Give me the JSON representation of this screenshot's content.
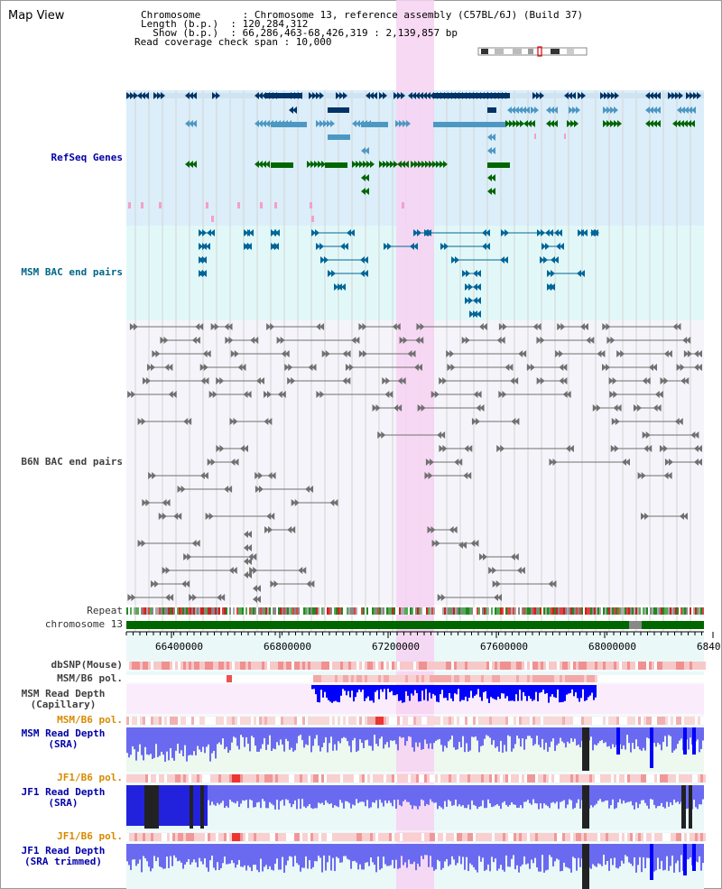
{
  "view": {
    "title": "Map View"
  },
  "info": {
    "chromosome_label": "Chromosome",
    "chromosome_value": "Chromosome 13, reference assembly (C57BL/6J) (Build 37)",
    "length_label": "Length (b.p.)",
    "length_value": "120,284,312",
    "show_label": "Show (b.p.)",
    "show_value": "66,286,463-68,426,319 : 2,139,857 bp",
    "coverage_label": "Read coverage check span",
    "coverage_value": "10,000",
    "line1": "Chromosome       : Chromosome 13, reference assembly (C57BL/6J) (Build 37)",
    "line2": "Length (b.p.)  : 120,284,312",
    "line3": "  Show (b.p.)  : 66,286,463-68,426,319 : 2,139,857 bp",
    "line4": "Read coverage check span : 10,000"
  },
  "tracks": {
    "refseq": "RefSeq Genes",
    "msm_bac": "MSM BAC end pairs",
    "b6n_bac": "B6N BAC end pairs",
    "repeat": "Repeat",
    "chromosome": "chromosome 13",
    "dbsnp": "dbSNP(Mouse)",
    "msm_b6_pol": "MSM/B6 pol.",
    "msm_depth_cap_1": "MSM Read Depth",
    "msm_depth_cap_2": "(Capillary)",
    "msm_b6_pol_2": "MSM/B6 pol.",
    "msm_depth_sra_1": "MSM Read Depth",
    "msm_depth_sra_2": "(SRA)",
    "jf1_b6_pol": "JF1/B6 pol.",
    "jf1_depth_sra_1": "JF1 Read Depth",
    "jf1_depth_sra_2": "(SRA)",
    "jf1_b6_pol_2": "JF1/B6 pol.",
    "jf1_depth_trim_1": "JF1 Read Depth",
    "jf1_depth_trim_2": "(SRA trimmed)"
  },
  "axis": {
    "ticks": [
      "66400000",
      "66800000",
      "67200000",
      "67600000",
      "68000000",
      "6840"
    ]
  },
  "colors": {
    "refseq_bg": "#dbeefa",
    "msm_bg": "#e2f8f8",
    "b6n_bg": "#f4f4fa",
    "highlight": "#f7d2f2",
    "gene_dark": "#003366",
    "gene_mid": "#4d98c2",
    "gene_green": "#006600",
    "pink_mark": "#f4a0c8",
    "msm_bac": "#006699",
    "b6n_bac": "#707070",
    "depth_blue": "#0000ff",
    "chromosome_green": "#006600"
  }
}
